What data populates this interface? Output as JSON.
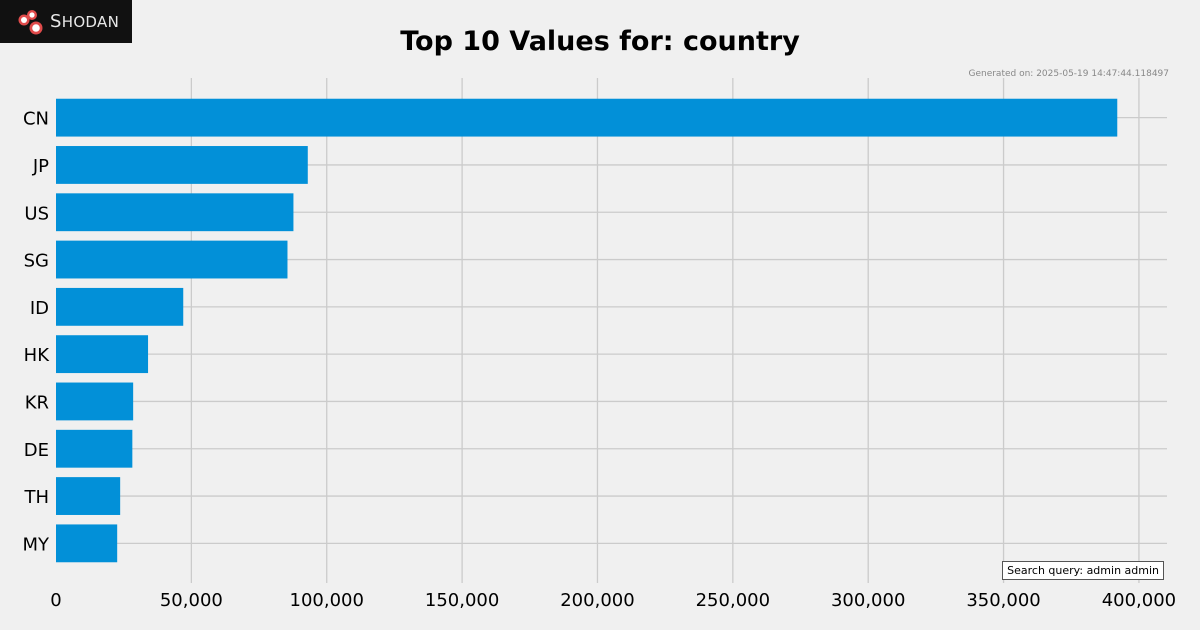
{
  "branding": {
    "logo_text": "Shodan",
    "logo_icon": "shodan-logo-icon"
  },
  "generated_text": "Generated on: 2025-05-19 14:47:44.118497",
  "query_text": "Search query: admin admin",
  "colors": {
    "bar": "#0290d8",
    "background": "#f0f0f0",
    "grid": "#cbcbcb",
    "logo_bg": "#111111",
    "logo_accent": "#e04b4b"
  },
  "chart_data": {
    "type": "bar",
    "orientation": "horizontal",
    "title": "Top 10 Values for: country",
    "categories": [
      "CN",
      "JP",
      "US",
      "SG",
      "ID",
      "HK",
      "KR",
      "DE",
      "TH",
      "MY"
    ],
    "values": [
      392000,
      93000,
      87700,
      85500,
      47000,
      34000,
      28500,
      28200,
      23700,
      22600
    ],
    "xlim": [
      0,
      410000
    ],
    "xticks": [
      0,
      50000,
      100000,
      150000,
      200000,
      250000,
      300000,
      350000,
      400000
    ],
    "xtick_labels": [
      "0",
      "50,000",
      "100,000",
      "150,000",
      "200,000",
      "250,000",
      "300,000",
      "350,000",
      "400,000"
    ],
    "xlabel": "",
    "ylabel": "",
    "grid": true
  }
}
